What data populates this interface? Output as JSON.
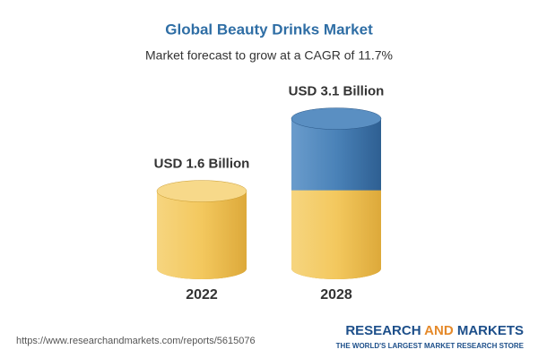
{
  "chart_data": {
    "type": "cylinder",
    "title": "Global Beauty Drinks Market",
    "subtitle": "Market forecast to grow at a CAGR of 11.7%",
    "categories": [
      "2022",
      "2028"
    ],
    "values": [
      1.6,
      3.1
    ],
    "value_labels": [
      "USD 1.6 Billion",
      "USD 3.1 Billion"
    ],
    "colors": [
      "#f1c350",
      "#3e77ad"
    ]
  },
  "footer": {
    "url": "https://www.researchandmarkets.com/reports/5615076",
    "logo": [
      "RESEARCH",
      "AND",
      "MARKETS"
    ],
    "tagline": "THE WORLD'S LARGEST MARKET RESEARCH STORE"
  }
}
